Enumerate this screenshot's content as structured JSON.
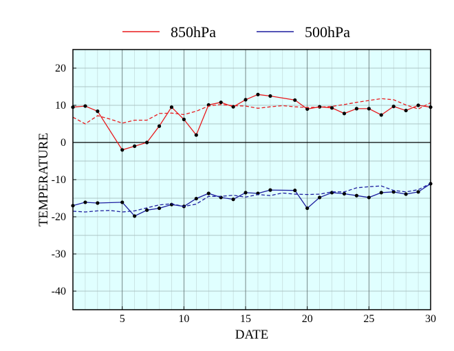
{
  "chart_data": {
    "type": "line",
    "xlabel": "DATE",
    "ylabel": "TEMPERATURE",
    "xlim": [
      1,
      30
    ],
    "ylim": [
      -45,
      25
    ],
    "x_ticks": [
      5,
      10,
      15,
      20,
      25,
      30
    ],
    "y_ticks": [
      20,
      10,
      0,
      -10,
      -20,
      -30,
      -40
    ],
    "x_tick_labels": [
      "5",
      "10",
      "15",
      "20",
      "25",
      "30"
    ],
    "y_tick_labels": [
      "20",
      "10",
      "0",
      "-10",
      "-20",
      "-30",
      "-40"
    ],
    "grid": true,
    "zero_line": true,
    "background_color": "#e0ffff",
    "legend_position": "top",
    "series": [
      {
        "name": "850hPa",
        "color": "#e8191c",
        "style": "solid-with-markers",
        "x": [
          1,
          2,
          3,
          5,
          6,
          7,
          8,
          9,
          10,
          11,
          12,
          13,
          14,
          15,
          16,
          17,
          19,
          20,
          21,
          22,
          23,
          24,
          25,
          26,
          27,
          28,
          29,
          30
        ],
        "y": [
          9.5,
          9.8,
          8.4,
          -2.0,
          -1.0,
          0.0,
          4.4,
          9.5,
          6.2,
          2.0,
          10.1,
          10.8,
          9.6,
          11.5,
          12.9,
          12.5,
          11.4,
          9.0,
          9.6,
          9.3,
          7.8,
          9.1,
          9.1,
          7.4,
          9.7,
          8.6,
          10.0,
          9.5
        ]
      },
      {
        "name": "",
        "color": "#e8191c",
        "style": "dashed",
        "x": [
          1,
          2,
          3,
          4,
          5,
          6,
          7,
          8,
          9,
          10,
          11,
          12,
          13,
          14,
          15,
          16,
          17,
          18,
          19,
          20,
          21,
          22,
          23,
          24,
          25,
          26,
          27,
          28,
          29,
          30
        ],
        "y": [
          6.8,
          5.0,
          7.2,
          6.3,
          5.2,
          6.0,
          6.0,
          7.8,
          7.9,
          7.5,
          8.4,
          9.8,
          10.2,
          9.9,
          9.8,
          9.2,
          9.6,
          9.9,
          9.6,
          9.4,
          9.5,
          9.7,
          10.2,
          10.8,
          11.3,
          11.8,
          11.5,
          10.1,
          9.0,
          10.7
        ]
      },
      {
        "name": "500hPa",
        "color": "#1c1c9e",
        "style": "solid-with-markers",
        "x": [
          1,
          2,
          3,
          5,
          6,
          7,
          8,
          9,
          10,
          11,
          12,
          13,
          14,
          15,
          16,
          17,
          19,
          20,
          21,
          22,
          23,
          24,
          25,
          26,
          27,
          28,
          29,
          30
        ],
        "y": [
          -17.0,
          -16.1,
          -16.3,
          -16.1,
          -19.8,
          -18.2,
          -17.7,
          -16.7,
          -17.2,
          -15.1,
          -13.7,
          -14.8,
          -15.3,
          -13.5,
          -13.7,
          -12.8,
          -12.9,
          -17.7,
          -14.8,
          -13.5,
          -13.8,
          -14.3,
          -14.8,
          -13.5,
          -13.3,
          -13.9,
          -13.3,
          -11.1
        ]
      },
      {
        "name": "",
        "color": "#1c1c9e",
        "style": "dashed",
        "x": [
          1,
          2,
          3,
          4,
          5,
          6,
          7,
          8,
          9,
          10,
          11,
          12,
          13,
          14,
          15,
          16,
          17,
          18,
          19,
          20,
          21,
          22,
          23,
          24,
          25,
          26,
          27,
          28,
          29,
          30
        ],
        "y": [
          -18.5,
          -18.7,
          -18.4,
          -18.3,
          -18.7,
          -18.4,
          -17.6,
          -16.8,
          -16.5,
          -17.2,
          -16.6,
          -14.5,
          -14.5,
          -14.2,
          -14.7,
          -14.0,
          -14.3,
          -13.6,
          -13.9,
          -14.0,
          -13.9,
          -13.3,
          -13.3,
          -12.2,
          -11.9,
          -11.7,
          -12.9,
          -13.3,
          -12.7,
          -11.0
        ]
      }
    ]
  }
}
